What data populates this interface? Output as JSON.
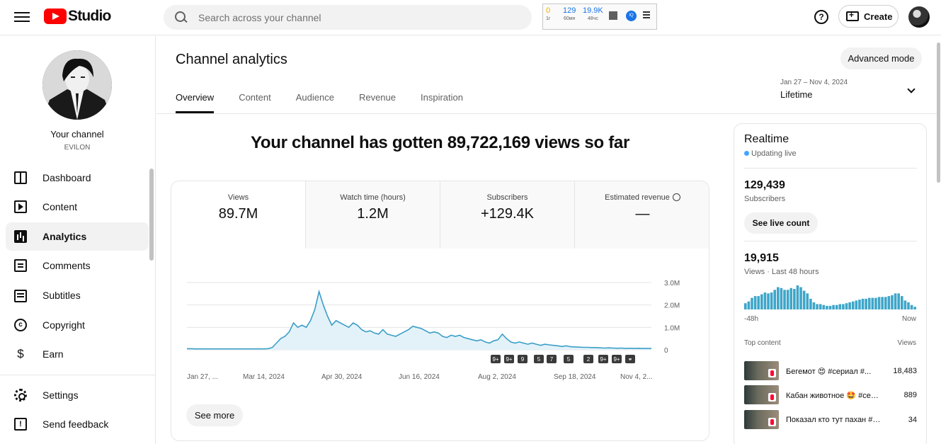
{
  "header": {
    "logo_text": "Studio",
    "search_placeholder": "Search across your channel",
    "create_label": "Create",
    "help_label": "?",
    "extension": {
      "stats": [
        {
          "value": "0",
          "label": "1г"
        },
        {
          "value": "129",
          "label": "60мн"
        },
        {
          "value": "19.9K",
          "label": "48чс"
        }
      ],
      "badge": "IQ"
    }
  },
  "sidebar": {
    "channel_label": "Your channel",
    "channel_handle": "EVILON",
    "items": [
      {
        "label": "Dashboard",
        "icon": "dashboard-icon"
      },
      {
        "label": "Content",
        "icon": "content-icon"
      },
      {
        "label": "Analytics",
        "icon": "analytics-icon"
      },
      {
        "label": "Comments",
        "icon": "comments-icon"
      },
      {
        "label": "Subtitles",
        "icon": "subtitles-icon"
      },
      {
        "label": "Copyright",
        "icon": "copyright-icon"
      },
      {
        "label": "Earn",
        "icon": "earn-icon"
      }
    ],
    "bottom_items": [
      {
        "label": "Settings",
        "icon": "settings-icon"
      },
      {
        "label": "Send feedback",
        "icon": "feedback-icon"
      }
    ]
  },
  "main": {
    "title": "Channel analytics",
    "advanced_mode": "Advanced mode",
    "tabs": [
      "Overview",
      "Content",
      "Audience",
      "Revenue",
      "Inspiration"
    ],
    "active_tab": "Overview",
    "date_range": "Jan 27 – Nov 4, 2024",
    "period": "Lifetime",
    "headline": "Your channel has gotten 89,722,169 views so far",
    "metrics": [
      {
        "label": "Views",
        "value": "89.7M"
      },
      {
        "label": "Watch time (hours)",
        "value": "1.2M"
      },
      {
        "label": "Subscribers",
        "value": "+129.4K"
      },
      {
        "label": "Estimated revenue",
        "value": "—"
      }
    ],
    "see_more": "See more"
  },
  "chart_data": {
    "type": "area",
    "title": "",
    "xlabel": "",
    "ylabel": "Views",
    "x_tick_labels": [
      "Jan 27, ...",
      "Mar 14, 2024",
      "Apr 30, 2024",
      "Jun 16, 2024",
      "Aug 2, 2024",
      "Sep 18, 2024",
      "Nov 4, 2..."
    ],
    "y_tick_labels": [
      "3.0M",
      "2.0M",
      "1.0M",
      "0"
    ],
    "ylim": [
      0,
      3000000
    ],
    "grid": true,
    "color": "#3a9ec7",
    "series": [
      {
        "values": [
          50000,
          50000,
          40000,
          40000,
          40000,
          40000,
          40000,
          40000,
          40000,
          40000,
          40000,
          40000,
          40000,
          40000,
          40000,
          40000,
          40000,
          40000,
          40000,
          50000,
          100000,
          300000,
          500000,
          600000,
          800000,
          1200000,
          1000000,
          1100000,
          1000000,
          1300000,
          1800000,
          2600000,
          2000000,
          1500000,
          1100000,
          1300000,
          1200000,
          1100000,
          1000000,
          1200000,
          1100000,
          900000,
          800000,
          850000,
          750000,
          700000,
          900000,
          700000,
          650000,
          600000,
          700000,
          800000,
          900000,
          1050000,
          1000000,
          950000,
          850000,
          750000,
          800000,
          750000,
          600000,
          550000,
          650000,
          600000,
          650000,
          550000,
          500000,
          450000,
          400000,
          450000,
          350000,
          300000,
          400000,
          450000,
          700000,
          500000,
          350000,
          300000,
          350000,
          300000,
          250000,
          300000,
          250000,
          200000,
          250000,
          220000,
          200000,
          180000,
          150000,
          180000,
          140000,
          130000,
          120000,
          110000,
          110000,
          100000,
          100000,
          90000,
          80000,
          90000,
          80000,
          70000,
          80000,
          60000,
          70000,
          60000,
          70000,
          60000,
          60000,
          60000
        ]
      }
    ],
    "video_markers": [
      "9+",
      "9+",
      "9",
      "5",
      "7",
      "5",
      "2",
      "9+",
      "9+",
      "link"
    ]
  },
  "realtime": {
    "title": "Realtime",
    "status": "Updating live",
    "subscribers_value": "129,439",
    "subscribers_label": "Subscribers",
    "live_count_button": "See live count",
    "views_value": "19,915",
    "views_label": "Views · Last 48 hours",
    "axis_start": "-48h",
    "axis_end": "Now",
    "top_content_label": "Top content",
    "views_col_label": "Views",
    "bars": [
      7,
      9,
      13,
      15,
      15,
      17,
      19,
      18,
      19,
      22,
      25,
      24,
      22,
      22,
      24,
      23,
      27,
      25,
      21,
      18,
      12,
      8,
      6,
      6,
      5,
      4,
      4,
      5,
      5,
      6,
      6,
      7,
      8,
      9,
      10,
      11,
      12,
      12,
      13,
      13,
      13,
      14,
      14,
      14,
      15,
      16,
      18,
      18,
      15,
      10,
      8,
      5,
      3
    ],
    "top_content": [
      {
        "title": "Бегемот 😍 #сериал #...",
        "views": "18,483"
      },
      {
        "title": "Кабан животное 🤩 #сер...",
        "views": "889"
      },
      {
        "title": "Показал кто тут пахан #се...",
        "views": "34"
      }
    ]
  }
}
